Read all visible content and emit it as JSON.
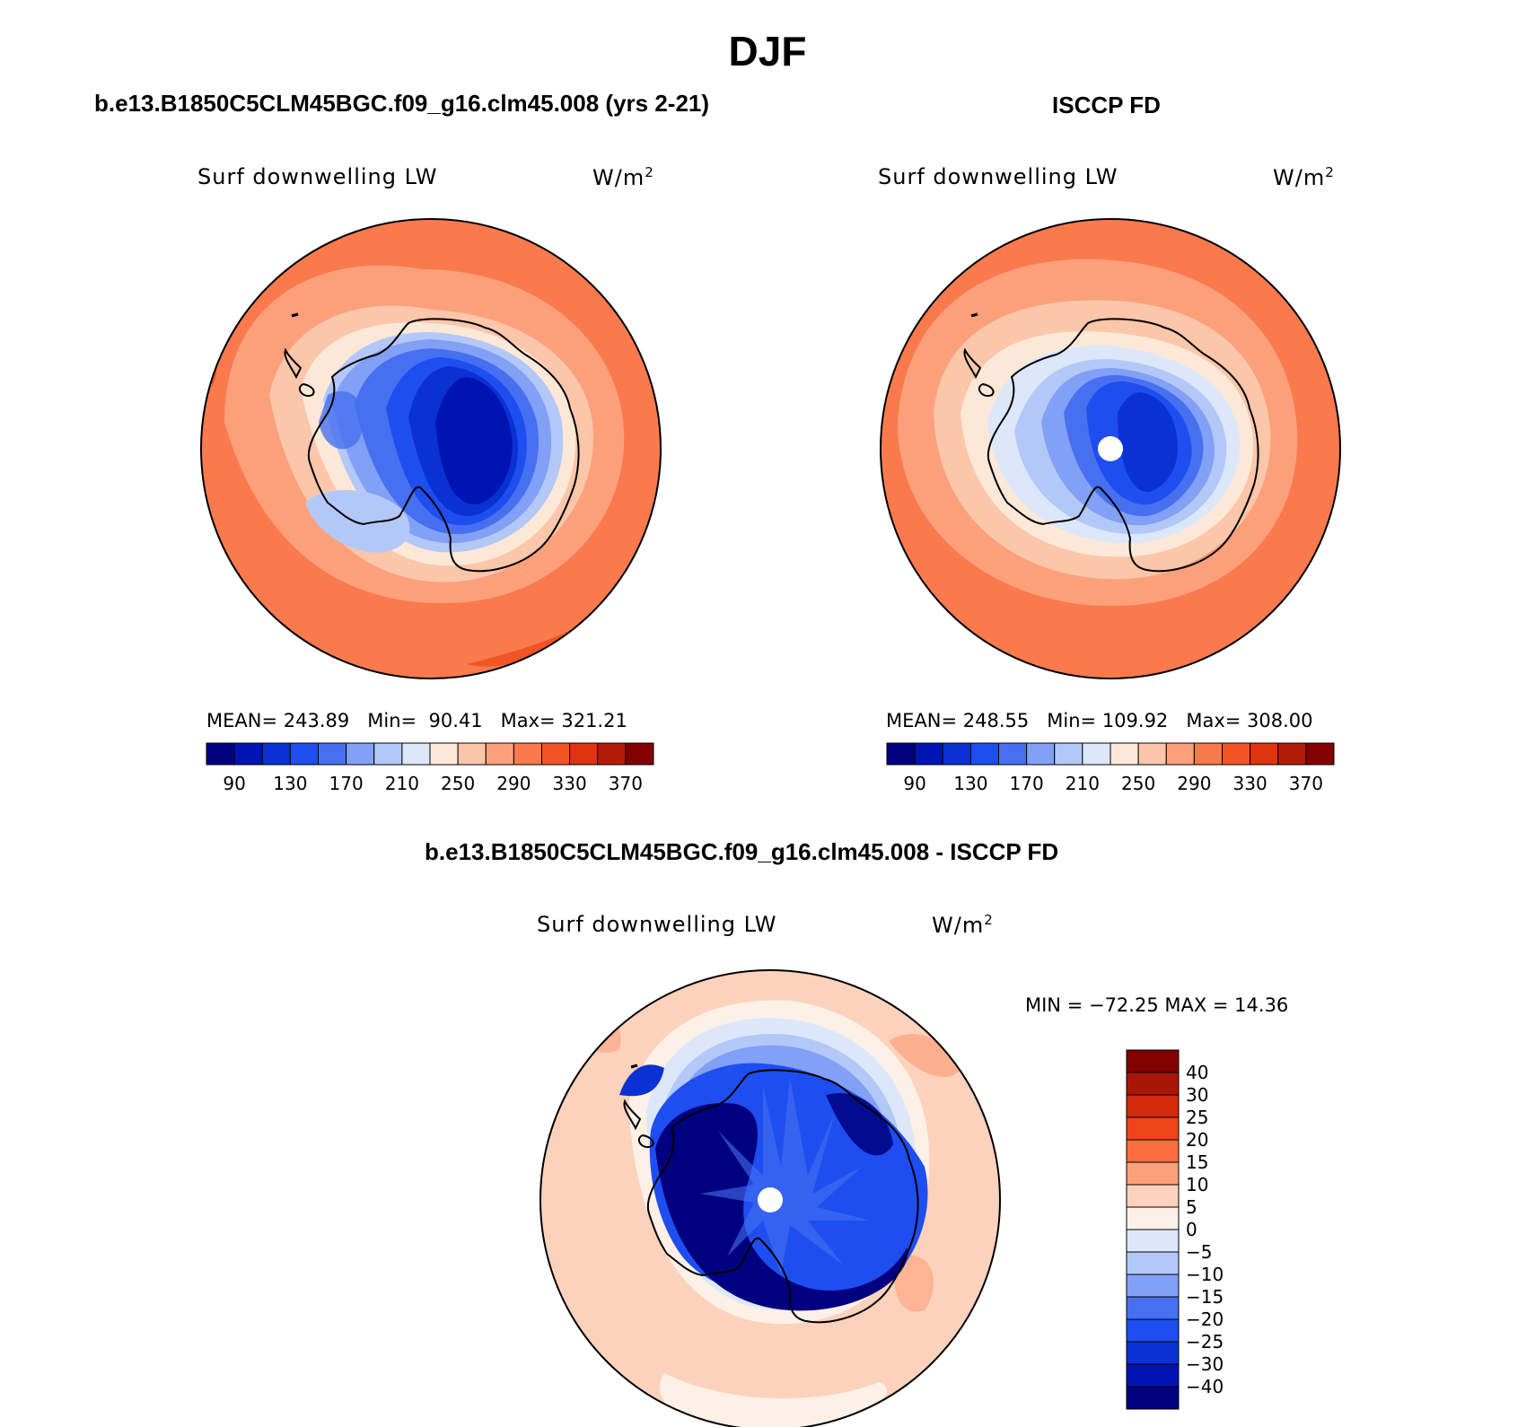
{
  "title": "DJF",
  "panels": [
    {
      "title": "b.e13.B1850C5CLM45BGC.f09_g16.clm45.008 (yrs 2-21)",
      "variable": "Surf downwelling LW",
      "units_base": "W/m",
      "units_exp": "2",
      "stats": {
        "mean_label": "MEAN=",
        "mean": "243.89",
        "min_label": "Min=",
        "min": "90.41",
        "max_label": "Max=",
        "max": "321.21"
      },
      "colorbar": {
        "colors": [
          "#000080",
          "#0014b4",
          "#0a32d2",
          "#1e4ef0",
          "#4670f0",
          "#82a0f5",
          "#b4c8f8",
          "#dce8fa",
          "#fde8d8",
          "#fcc6aa",
          "#fca07c",
          "#fa7a4e",
          "#f25424",
          "#de3410",
          "#b41c0a",
          "#820000"
        ],
        "labels": [
          "90",
          "130",
          "170",
          "210",
          "250",
          "290",
          "330",
          "370"
        ]
      },
      "has_pole_hole": false
    },
    {
      "title": "ISCCP FD",
      "variable": "Surf downwelling LW",
      "units_base": "W/m",
      "units_exp": "2",
      "stats": {
        "mean_label": "MEAN=",
        "mean": "248.55",
        "min_label": "Min=",
        "min": "109.92",
        "max_label": "Max=",
        "max": "308.00"
      },
      "colorbar": {
        "colors": [
          "#000080",
          "#0014b4",
          "#0a32d2",
          "#1e4ef0",
          "#4670f0",
          "#82a0f5",
          "#b4c8f8",
          "#dce8fa",
          "#fde8d8",
          "#fcc6aa",
          "#fca07c",
          "#fa7a4e",
          "#f25424",
          "#de3410",
          "#b41c0a",
          "#820000"
        ],
        "labels": [
          "90",
          "130",
          "170",
          "210",
          "250",
          "290",
          "330",
          "370"
        ]
      },
      "has_pole_hole": true
    },
    {
      "title": "b.e13.B1850C5CLM45BGC.f09_g16.clm45.008 - ISCCP FD",
      "variable": "Surf downwelling LW",
      "units_base": "W/m",
      "units_exp": "2",
      "minmax": "MIN = −72.25 MAX =  14.36",
      "colorbar": {
        "colors": [
          "#000080",
          "#0014b4",
          "#0a32d2",
          "#1e4ef0",
          "#4670f0",
          "#82a0f5",
          "#b4c8f8",
          "#dce8fa",
          "#fdf0e6",
          "#fcd2bc",
          "#fca07c",
          "#fa6e40",
          "#f04418",
          "#d22a0a",
          "#aa1606",
          "#820000"
        ],
        "labels": [
          "40",
          "30",
          "25",
          "20",
          "15",
          "10",
          "5",
          "0",
          "−5",
          "−10",
          "−15",
          "−20",
          "−25",
          "−30",
          "−40"
        ]
      },
      "has_pole_hole": true
    }
  ]
}
